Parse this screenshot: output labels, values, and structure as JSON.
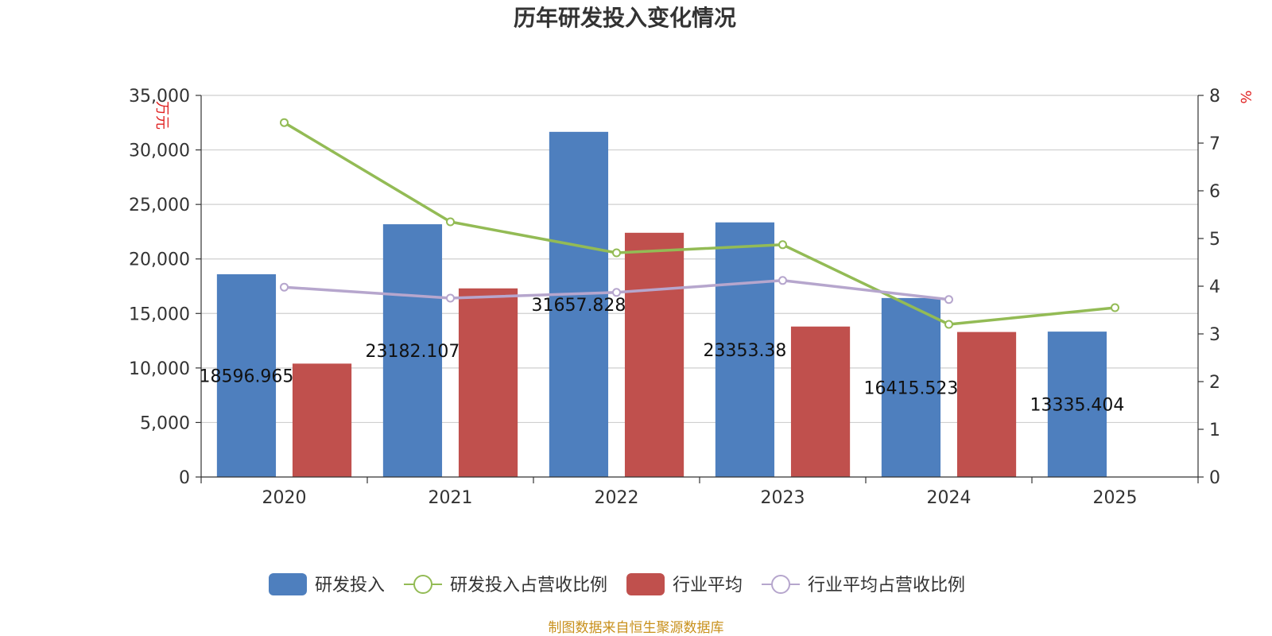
{
  "title": "历年研发投入变化情况",
  "source": "制图数据来自恒生聚源数据库",
  "colors": {
    "rd": "#4e7fbe",
    "rd_ratio": "#93bb55",
    "industry": "#c0504d",
    "industry_ratio": "#b6a6cd",
    "axis": "#333333",
    "grid": "#cfcfcf",
    "unit": "#e02020",
    "source": "#c8901c"
  },
  "chart_data": {
    "type": "bar",
    "categories": [
      "2020",
      "2021",
      "2022",
      "2023",
      "2024",
      "2025"
    ],
    "y_left": {
      "unit_label": "万元",
      "ylim": [
        0,
        35000
      ],
      "ticks": [
        0,
        5000,
        10000,
        15000,
        20000,
        25000,
        30000,
        35000
      ],
      "tick_labels": [
        "0",
        "5,000",
        "10,000",
        "15,000",
        "20,000",
        "25,000",
        "30,000",
        "35,000"
      ]
    },
    "y_right": {
      "unit_label": "%",
      "ylim": [
        0,
        8
      ],
      "ticks": [
        0,
        1,
        2,
        3,
        4,
        5,
        6,
        7,
        8
      ],
      "tick_labels": [
        "0",
        "1",
        "2",
        "3",
        "4",
        "5",
        "6",
        "7",
        "8"
      ]
    },
    "series": [
      {
        "name": "研发投入",
        "type": "bar",
        "axis": "left",
        "values": [
          18596.965,
          23182.107,
          31657.828,
          23353.38,
          16415.523,
          13335.404
        ],
        "labels": [
          "18596.965",
          "23182.107",
          "31657.828",
          "23353.38",
          "16415.523",
          "13335.404"
        ]
      },
      {
        "name": "研发投入占营收比例",
        "type": "line",
        "axis": "right",
        "values": [
          7.43,
          5.35,
          4.7,
          4.87,
          3.2,
          3.55
        ]
      },
      {
        "name": "行业平均",
        "type": "bar",
        "axis": "left",
        "values": [
          10400,
          17300,
          22400,
          13800,
          13300,
          null
        ]
      },
      {
        "name": "行业平均占营收比例",
        "type": "line",
        "axis": "right",
        "values": [
          3.98,
          3.75,
          3.87,
          4.12,
          3.72,
          null
        ]
      }
    ],
    "legend_position": "bottom-center",
    "grid": true
  }
}
